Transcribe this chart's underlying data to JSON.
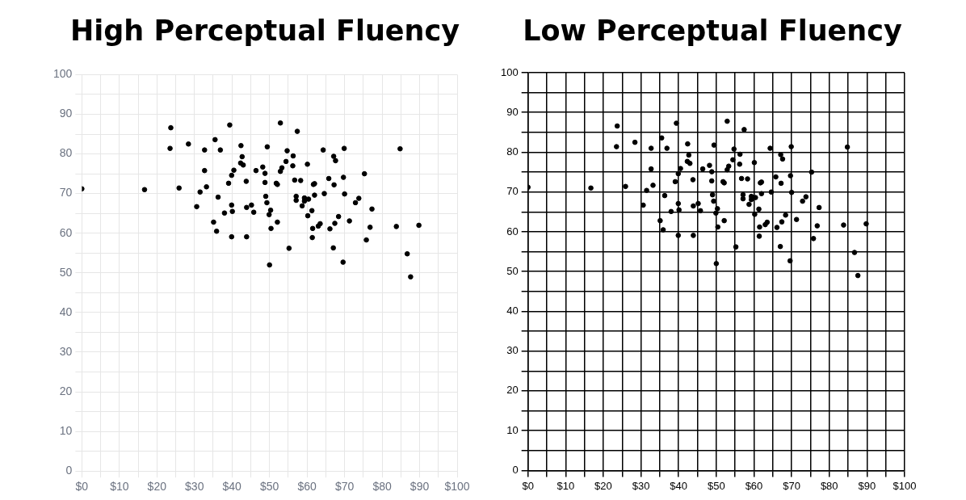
{
  "chart_data": [
    {
      "type": "scatter",
      "title": "High Perceptual Fluency",
      "color": "#000000",
      "marker": "circle",
      "grid": true,
      "x": [
        0,
        16.7,
        23.7,
        23.5,
        25.9,
        28.4,
        30.6,
        31.5,
        32.7,
        32.7,
        33.2,
        35.5,
        35.1,
        35.9,
        36.3,
        36.9,
        38.0,
        39.4,
        39.1,
        39.9,
        39.9,
        40.1,
        39.9,
        40.5,
        42.4,
        42.7,
        42.3,
        43.0,
        43.8,
        43.9,
        43.9,
        45.2,
        45.8,
        46.4,
        48.2,
        48.8,
        48.8,
        49.0,
        49.3,
        49.4,
        49.9,
        50.3,
        50.4,
        50.0,
        51.8,
        52.1,
        52.1,
        52.9,
        52.9,
        53.3,
        54.4,
        54.7,
        55.2,
        56.2,
        56.3,
        56.7,
        57.1,
        57.1,
        57.4,
        58.3,
        58.7,
        59.3,
        59.3,
        60.1,
        60.4,
        60.2,
        61.3,
        61.5,
        61.4,
        61.7,
        62.0,
        62.0,
        63.0,
        63.5,
        64.3,
        64.6,
        65.8,
        66.1,
        67.0,
        67.1,
        67.2,
        67.6,
        67.4,
        68.4,
        69.6,
        69.7,
        69.9,
        70.0,
        71.3,
        72.9,
        73.8,
        75.3,
        75.8,
        76.8,
        77.3,
        83.8,
        84.8,
        86.7,
        87.6,
        89.8
      ],
      "values": [
        71.2,
        71.0,
        86.6,
        81.4,
        71.4,
        82.5,
        66.7,
        70.4,
        81.0,
        75.8,
        71.7,
        83.6,
        62.8,
        60.5,
        69.1,
        81.0,
        65.1,
        87.3,
        72.6,
        74.6,
        67.1,
        65.5,
        59.1,
        75.9,
        82.1,
        79.3,
        77.7,
        77.2,
        73.1,
        66.5,
        59.1,
        67.1,
        65.3,
        75.8,
        76.7,
        75.1,
        72.8,
        69.3,
        67.7,
        81.8,
        64.7,
        65.8,
        61.2,
        52.0,
        72.6,
        72.3,
        62.8,
        87.8,
        75.6,
        76.5,
        78.1,
        80.8,
        56.2,
        77.0,
        79.5,
        73.4,
        69.3,
        68.3,
        85.7,
        73.3,
        66.9,
        68.9,
        68.1,
        77.4,
        68.6,
        64.4,
        65.7,
        61.2,
        58.9,
        72.3,
        72.5,
        69.6,
        61.8,
        62.4,
        81.0,
        70.0,
        73.8,
        61.1,
        56.3,
        79.4,
        72.2,
        78.3,
        62.5,
        64.2,
        52.7,
        74.1,
        81.4,
        69.9,
        63.1,
        67.7,
        68.8,
        75.0,
        58.3,
        61.5,
        66.1,
        61.7,
        81.3,
        54.8,
        49.0,
        62.0
      ],
      "xlim": [
        0,
        100
      ],
      "xticks": [
        {
          "value": 0,
          "label": "$0"
        },
        {
          "value": 5,
          "label": null
        },
        {
          "value": 10,
          "label": "$10"
        },
        {
          "value": 15,
          "label": null
        },
        {
          "value": 20,
          "label": "$20"
        },
        {
          "value": 25,
          "label": null
        },
        {
          "value": 30,
          "label": "$30"
        },
        {
          "value": 35,
          "label": null
        },
        {
          "value": 40,
          "label": "$40"
        },
        {
          "value": 45,
          "label": null
        },
        {
          "value": 50,
          "label": "$50"
        },
        {
          "value": 55,
          "label": null
        },
        {
          "value": 60,
          "label": "$60"
        },
        {
          "value": 65,
          "label": null
        },
        {
          "value": 70,
          "label": "$70"
        },
        {
          "value": 75,
          "label": null
        },
        {
          "value": 80,
          "label": "$80"
        },
        {
          "value": 85,
          "label": null
        },
        {
          "value": 90,
          "label": "$90"
        },
        {
          "value": 95,
          "label": null
        },
        {
          "value": 100,
          "label": "$100"
        }
      ],
      "ylim": [
        0,
        100
      ],
      "yticks": [
        0,
        {
          "value": 5,
          "label": null
        },
        10,
        {
          "value": 15,
          "label": null
        },
        20,
        {
          "value": 25,
          "label": null
        },
        30,
        {
          "value": 35,
          "label": null
        },
        40,
        {
          "value": 45,
          "label": null
        },
        50,
        {
          "value": 55,
          "label": null
        },
        60,
        {
          "value": 65,
          "label": null
        },
        70,
        {
          "value": 75,
          "label": null
        },
        80,
        {
          "value": 85,
          "label": null
        },
        90,
        {
          "value": 95,
          "label": null
        },
        100
      ]
    },
    {
      "type": "scatter",
      "title": "Low Perceptual Fluency",
      "color": "#000000",
      "marker": "circle",
      "grid": true,
      "x": [
        0,
        16.7,
        23.7,
        23.5,
        25.9,
        28.4,
        30.6,
        31.5,
        32.7,
        32.7,
        33.2,
        35.5,
        35.1,
        35.9,
        36.3,
        36.9,
        38.0,
        39.4,
        39.1,
        39.9,
        39.9,
        40.1,
        39.9,
        40.5,
        42.4,
        42.7,
        42.3,
        43.0,
        43.8,
        43.9,
        43.9,
        45.2,
        45.8,
        46.4,
        48.2,
        48.8,
        48.8,
        49.0,
        49.3,
        49.4,
        49.9,
        50.3,
        50.4,
        50.0,
        51.8,
        52.1,
        52.1,
        52.9,
        52.9,
        53.3,
        54.4,
        54.7,
        55.2,
        56.2,
        56.3,
        56.7,
        57.1,
        57.1,
        57.4,
        58.3,
        58.7,
        59.3,
        59.3,
        60.1,
        60.4,
        60.2,
        61.3,
        61.5,
        61.4,
        61.7,
        62.0,
        62.0,
        63.0,
        63.5,
        64.3,
        64.6,
        65.8,
        66.1,
        67.0,
        67.1,
        67.2,
        67.6,
        67.4,
        68.4,
        69.6,
        69.7,
        69.9,
        70.0,
        71.3,
        72.9,
        73.8,
        75.3,
        75.8,
        76.8,
        77.3,
        83.8,
        84.8,
        86.7,
        87.6,
        89.8
      ],
      "values": [
        71.2,
        71.0,
        86.6,
        81.4,
        71.4,
        82.5,
        66.7,
        70.4,
        81.0,
        75.8,
        71.7,
        83.6,
        62.8,
        60.5,
        69.1,
        81.0,
        65.1,
        87.3,
        72.6,
        74.6,
        67.1,
        65.5,
        59.1,
        75.9,
        82.1,
        79.3,
        77.7,
        77.2,
        73.1,
        66.5,
        59.1,
        67.1,
        65.3,
        75.8,
        76.7,
        75.1,
        72.8,
        69.3,
        67.7,
        81.8,
        64.7,
        65.8,
        61.2,
        52.0,
        72.6,
        72.3,
        62.8,
        87.8,
        75.6,
        76.5,
        78.1,
        80.8,
        56.2,
        77.0,
        79.5,
        73.4,
        69.3,
        68.3,
        85.7,
        73.3,
        66.9,
        68.9,
        68.1,
        77.4,
        68.6,
        64.4,
        65.7,
        61.2,
        58.9,
        72.3,
        72.5,
        69.6,
        61.8,
        62.4,
        81.0,
        70.0,
        73.8,
        61.1,
        56.3,
        79.4,
        72.2,
        78.3,
        62.5,
        64.2,
        52.7,
        74.1,
        81.4,
        69.9,
        63.1,
        67.7,
        68.8,
        75.0,
        58.3,
        61.5,
        66.1,
        61.7,
        81.3,
        54.8,
        49.0,
        62.0
      ],
      "xlim": [
        0,
        100
      ],
      "xticks": [
        {
          "value": 0,
          "label": "$0"
        },
        {
          "value": 5,
          "label": null
        },
        {
          "value": 10,
          "label": "$10"
        },
        {
          "value": 15,
          "label": null
        },
        {
          "value": 20,
          "label": "$20"
        },
        {
          "value": 25,
          "label": null
        },
        {
          "value": 30,
          "label": "$30"
        },
        {
          "value": 35,
          "label": null
        },
        {
          "value": 40,
          "label": "$40"
        },
        {
          "value": 45,
          "label": null
        },
        {
          "value": 50,
          "label": "$50"
        },
        {
          "value": 55,
          "label": null
        },
        {
          "value": 60,
          "label": "$60"
        },
        {
          "value": 65,
          "label": null
        },
        {
          "value": 70,
          "label": "$70"
        },
        {
          "value": 75,
          "label": null
        },
        {
          "value": 80,
          "label": "$80"
        },
        {
          "value": 85,
          "label": null
        },
        {
          "value": 90,
          "label": "$90"
        },
        {
          "value": 95,
          "label": null
        },
        {
          "value": 100,
          "label": "$100"
        }
      ],
      "ylim": [
        0,
        100
      ],
      "yticks": [
        0,
        {
          "value": 5,
          "label": null
        },
        10,
        {
          "value": 15,
          "label": null
        },
        20,
        {
          "value": 25,
          "label": null
        },
        30,
        {
          "value": 35,
          "label": null
        },
        40,
        {
          "value": 45,
          "label": null
        },
        50,
        {
          "value": 55,
          "label": null
        },
        60,
        {
          "value": 65,
          "label": null
        },
        70,
        {
          "value": 75,
          "label": null
        },
        80,
        {
          "value": 85,
          "label": null
        },
        90,
        {
          "value": 95,
          "label": null
        },
        100
      ]
    }
  ]
}
